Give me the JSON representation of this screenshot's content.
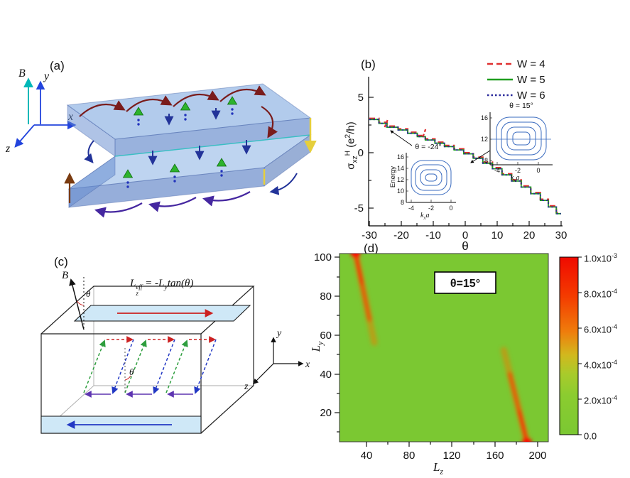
{
  "panel_a": {
    "label": "(a)",
    "axis_B": "B",
    "axis_x": "x",
    "axis_y": "y",
    "axis_z": "z",
    "colors": {
      "B_axis": "#00b8b8",
      "xyz_axis": "#2244dd",
      "slab_fill": "#6f9ad8",
      "top_current": "#7a1c1c",
      "bottom_current": "#4527a0",
      "spin_cone": "#2db32d",
      "edge_highlight": "#e6cf3c"
    }
  },
  "panel_b": {
    "label": "(b)",
    "ylabel_parts": {
      "sigma": "σ",
      "sub": "xz",
      "sup": "H",
      "units_open": " (e",
      "units_exp": "2",
      "units_close": "/h)"
    },
    "legend": [
      {
        "label": "W = 4",
        "color": "#e03030",
        "style": "dashed"
      },
      {
        "label": "W = 5",
        "color": "#1f9e1f",
        "style": "solid"
      },
      {
        "label": "W = 6",
        "color": "#2a2a9b",
        "style": "dotted"
      }
    ],
    "inset_klabel": {
      "base": "k",
      "sub": "x",
      "tail": "a"
    }
  },
  "panel_c": {
    "label": "(c)",
    "b_field": "B",
    "theta_top": "θ",
    "theta_inner": "θ",
    "formula": {
      "base": "L",
      "sup": "eff",
      "sub": "z",
      "eq": " = -L",
      "sub2": "y",
      "tail": "tan(θ)"
    },
    "axis_x": "x",
    "axis_y": "y",
    "axis_z": "z"
  },
  "panel_d": {
    "label": "(d)",
    "xlabel": {
      "base": "L",
      "sub": "z"
    },
    "ylabel": {
      "base": "L",
      "sub": "y"
    },
    "colorbar_labels": [
      {
        "m": "1.0x10",
        "e": "-3"
      },
      {
        "m": "8.0x10",
        "e": "-4"
      },
      {
        "m": "6.0x10",
        "e": "-4"
      },
      {
        "m": "4.0x10",
        "e": "-4"
      },
      {
        "m": "2.0x10",
        "e": "-4"
      },
      {
        "m": "0.0",
        "e": ""
      }
    ]
  },
  "chart_data": [
    {
      "panel": "b",
      "type": "line",
      "xlabel": "θ",
      "ylabel": "σ_xz^H (e2/h)",
      "xlim": [
        -30,
        30
      ],
      "ylim": [
        -6.5,
        6.5
      ],
      "xticks": [
        -30,
        -20,
        -10,
        0,
        10,
        20,
        30
      ],
      "yticks": [
        5,
        0,
        -5
      ],
      "legend_position": "top-right",
      "series_note": "W = 4 (red dashed), W = 5 (green solid) and W = 6 (blue dotted) collapse onto one staircase; W = 4 shows small extra spikes near θ = -25 and θ = -13",
      "staircase": {
        "x": [
          -30,
          -27,
          -27,
          -24.5,
          -24.5,
          -21,
          -21,
          -18,
          -18,
          -15,
          -15,
          -12.5,
          -12.5,
          -9.5,
          -9.5,
          -6.5,
          -6.5,
          -3.5,
          -3.5,
          -0.5,
          -0.5,
          2.5,
          2.5,
          5.5,
          5.5,
          8.5,
          8.5,
          11.5,
          11.5,
          14.5,
          14.5,
          17.5,
          17.5,
          20.5,
          20.5,
          23.5,
          23.5,
          26,
          26,
          28.5,
          28.5,
          30
        ],
        "y": [
          3.0,
          3.0,
          2.65,
          2.65,
          2.3,
          2.3,
          2.05,
          2.05,
          1.75,
          1.75,
          1.45,
          1.45,
          1.15,
          1.15,
          0.85,
          0.85,
          0.55,
          0.55,
          0.25,
          0.25,
          -0.1,
          -0.1,
          -0.5,
          -0.5,
          -0.95,
          -0.95,
          -1.45,
          -1.45,
          -2.0,
          -2.0,
          -2.55,
          -2.55,
          -3.1,
          -3.1,
          -3.7,
          -3.7,
          -4.3,
          -4.3,
          -4.9,
          -4.9,
          -5.5,
          -5.5
        ]
      },
      "w4_deviations": [
        {
          "x": -25.2,
          "y_from": 2.3,
          "y_to": 2.95
        },
        {
          "x": -13.2,
          "y_from": 1.45,
          "y_to": 2.2
        }
      ],
      "insets": [
        {
          "title": "θ = -24°",
          "xlabel": "k_x a",
          "ylabel": "Energy",
          "xticks": [
            -4,
            -2,
            0
          ],
          "yticks": [
            8,
            10,
            12,
            14,
            16
          ],
          "content": "nested quasi-1D energy subbands"
        },
        {
          "title": "θ = 15°",
          "xlabel": "k_x a",
          "ylabel": "Energy",
          "xticks": [
            -4,
            -2,
            0
          ],
          "yticks": [
            8,
            12,
            16
          ],
          "content": "nested quasi-1D energy subbands"
        }
      ]
    },
    {
      "panel": "d",
      "type": "heatmap",
      "xlabel": "L_z",
      "ylabel": "L_y",
      "xlim": [
        15,
        210
      ],
      "ylim": [
        5,
        102
      ],
      "xticks": [
        40,
        80,
        120,
        160,
        200
      ],
      "yticks": [
        20,
        40,
        60,
        80,
        100
      ],
      "annotation": "θ=15°",
      "colorbar": {
        "min_label": "0.0",
        "max_label": "1.0x10^-3",
        "tick_values": [
          0,
          0.0002,
          0.0004,
          0.0006,
          0.0008,
          0.001
        ]
      },
      "background_value_color": "#7bc832",
      "max_color": "#ff0000",
      "features": [
        {
          "type": "streak",
          "from": {
            "Lz": 30,
            "Ly": 102
          },
          "to": {
            "Lz": 43,
            "Ly": 68
          },
          "note": "hinge-state weight, brightest at top edge"
        },
        {
          "type": "streak",
          "from": {
            "Lz": 190,
            "Ly": 5
          },
          "to": {
            "Lz": 174,
            "Ly": 40
          },
          "note": "hinge-state weight, brightest at bottom edge"
        }
      ]
    }
  ]
}
